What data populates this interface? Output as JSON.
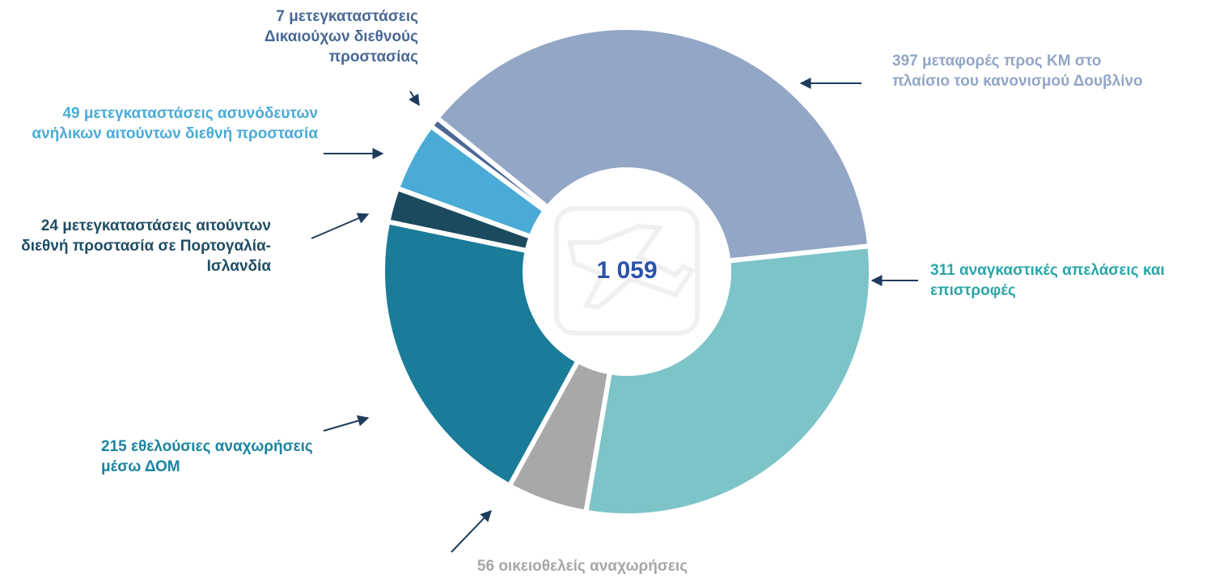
{
  "chart_data": {
    "type": "donut",
    "categories": [
      "μεταφορές προς ΚΜ στο πλαίσιο του κανονισμού Δουβλίνο",
      "αναγκαστικές απελάσεις και επιστροφές",
      "οικειοθελείς αναχωρήσεις",
      "εθελούσιες αναχωρήσεις μέσω ΔΟΜ",
      "μετεγκαταστάσεις αιτούντων διεθνή προστασία σε Πορτογαλία-Ισλανδία",
      "μετεγκαταστάσεις ασυνόδευτων ανήλικων αιτούντων διεθνή προστασία",
      "μετεγκαταστάσεις Δικαιούχων διεθνούς προστασίας"
    ],
    "values": [
      397,
      311,
      56,
      215,
      24,
      49,
      7
    ],
    "colors": [
      "#93a6c6",
      "#7cc4c8",
      "#a8a8a8",
      "#1a7c98",
      "#1b4a5e",
      "#4aabd6",
      "#4a6896"
    ],
    "label_colors": [
      "#93a6c6",
      "#2aa6a9",
      "#a6a6a6",
      "#1a84a0",
      "#1f4d63",
      "#4aabd6",
      "#4a6896"
    ],
    "total": {
      "value": 1059,
      "label": "1 059"
    }
  }
}
